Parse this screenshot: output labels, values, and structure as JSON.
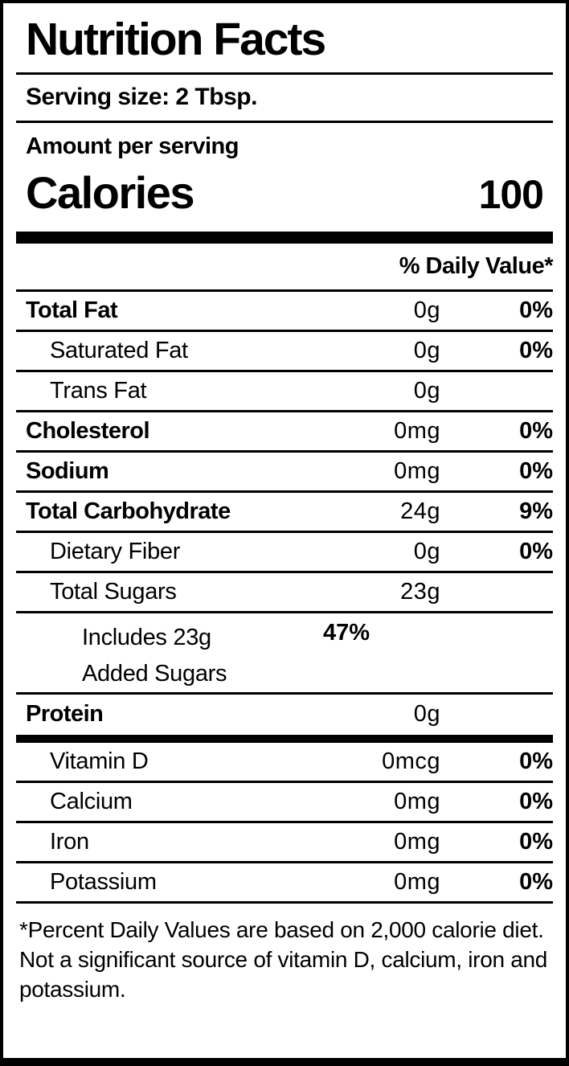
{
  "label": {
    "title": "Nutrition Facts",
    "serving_size": "Serving size: 2 Tbsp.",
    "amount_per_serving": "Amount per serving",
    "calories_label": "Calories",
    "calories_value": "100",
    "daily_value_header": "% Daily Value*",
    "rows": [
      {
        "name": "Total Fat",
        "amount": "0g",
        "dv": "0%"
      },
      {
        "name": "Saturated Fat",
        "amount": "0g",
        "dv": "0%"
      },
      {
        "name": "Trans Fat",
        "amount": "0g",
        "dv": ""
      },
      {
        "name": "Cholesterol",
        "amount": "0mg",
        "dv": "0%"
      },
      {
        "name": "Sodium",
        "amount": "0mg",
        "dv": "0%"
      },
      {
        "name": "Total Carbohydrate",
        "amount": "24g",
        "dv": "9%"
      },
      {
        "name": "Dietary Fiber",
        "amount": "0g",
        "dv": "0%"
      },
      {
        "name": "Total Sugars",
        "amount": "23g",
        "dv": ""
      },
      {
        "name": "Includes 23g Added Sugars",
        "amount": "",
        "dv": "47%"
      },
      {
        "name": "Protein",
        "amount": "0g",
        "dv": ""
      }
    ],
    "micronutrients": [
      {
        "name": "Vitamin D",
        "amount": "0mcg",
        "dv": "0%"
      },
      {
        "name": "Calcium",
        "amount": "0mg",
        "dv": "0%"
      },
      {
        "name": "Iron",
        "amount": "0mg",
        "dv": "0%"
      },
      {
        "name": "Potassium",
        "amount": "0mg",
        "dv": "0%"
      }
    ],
    "footnote": "*Percent Daily Values are based on 2,000 calorie diet. Not a significant source of vitamin D, calcium, iron and potassium.",
    "colors": {
      "text": "#000000",
      "background": "#ffffff"
    }
  }
}
